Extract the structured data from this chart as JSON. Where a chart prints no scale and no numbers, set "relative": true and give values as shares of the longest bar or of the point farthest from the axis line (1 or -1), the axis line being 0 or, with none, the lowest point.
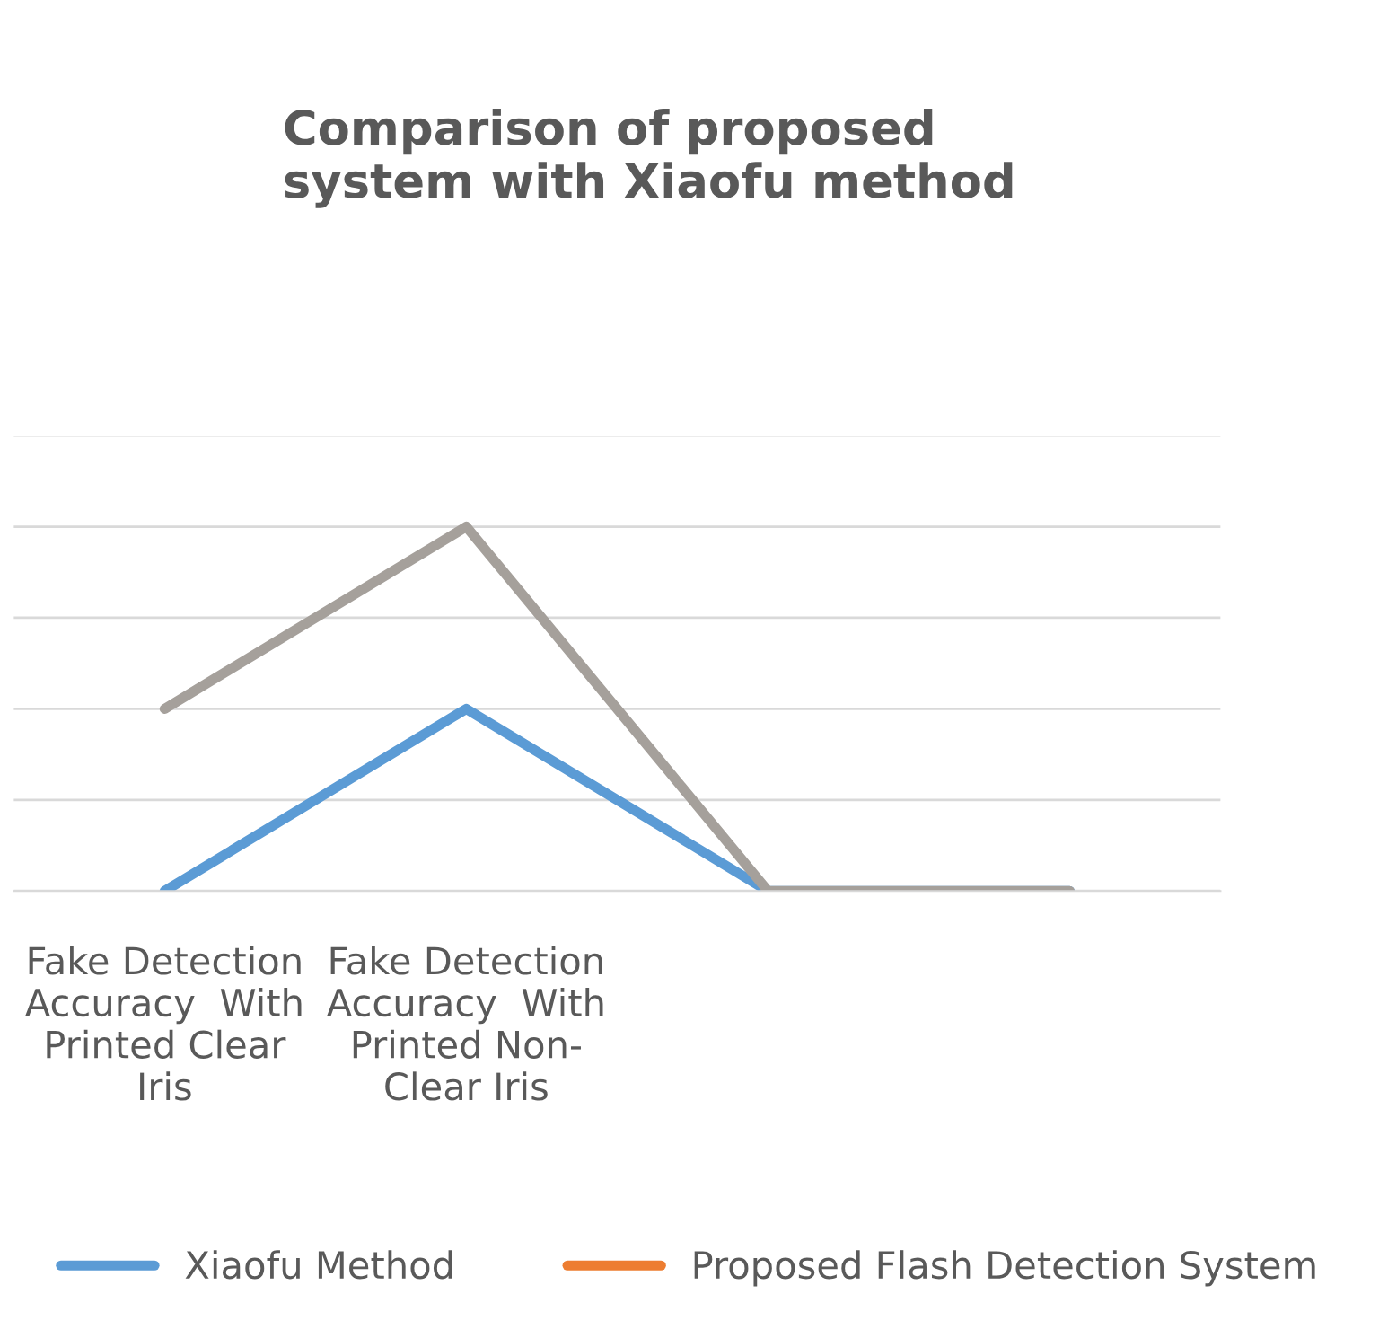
{
  "chart_data": {
    "type": "line",
    "title": "Comparison of proposed\nsystem with Xiaofu method",
    "relative": true,
    "categories": [
      "Fake Detection\nAccuracy  With\nPrinted Clear\nIris",
      "Fake Detection\nAccuracy  With\nPrinted Non-\nClear Iris",
      null,
      null
    ],
    "series": [
      {
        "name": "Xiaofu Method",
        "color": "#5b9bd5",
        "values": [
          0,
          0.5,
          0,
          0
        ]
      },
      {
        "name": "Proposed Flash Detection System",
        "color": "#ed7d31",
        "values": [
          null,
          null,
          null,
          null
        ]
      },
      {
        "color": "#a5a09b",
        "values": [
          0.5,
          1,
          0,
          0
        ]
      }
    ],
    "grid": "y",
    "legend": "bottom",
    "marker": "none",
    "line_style": "solid"
  }
}
